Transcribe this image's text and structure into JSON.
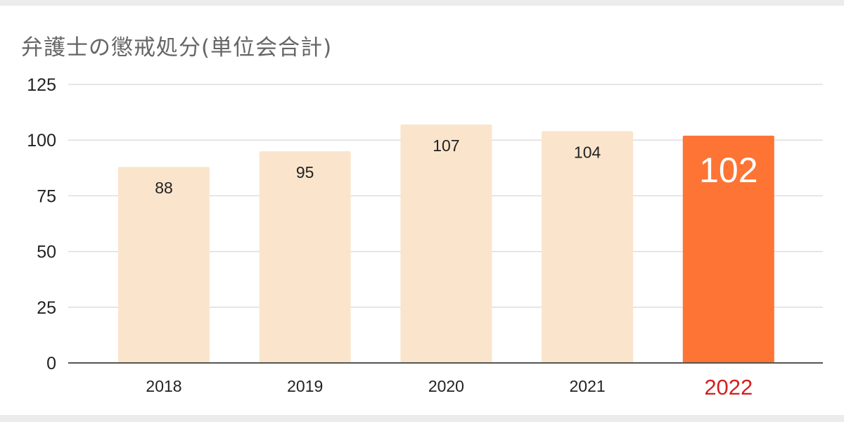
{
  "chart_data": {
    "type": "bar",
    "title": "弁護士の懲戒処分(単位会合計)",
    "categories": [
      "2018",
      "2019",
      "2020",
      "2021",
      "2022"
    ],
    "values": [
      88,
      95,
      107,
      104,
      102
    ],
    "ylim": [
      0,
      125
    ],
    "yticks": [
      0,
      25,
      50,
      75,
      100,
      125
    ],
    "grid": true,
    "highlight_index": 4,
    "colors": {
      "bar": "#fae5cc",
      "highlight_bar": "#fd7434",
      "highlight_label": "#d32020",
      "grid": "#dddddd",
      "axis": "#555555"
    }
  }
}
